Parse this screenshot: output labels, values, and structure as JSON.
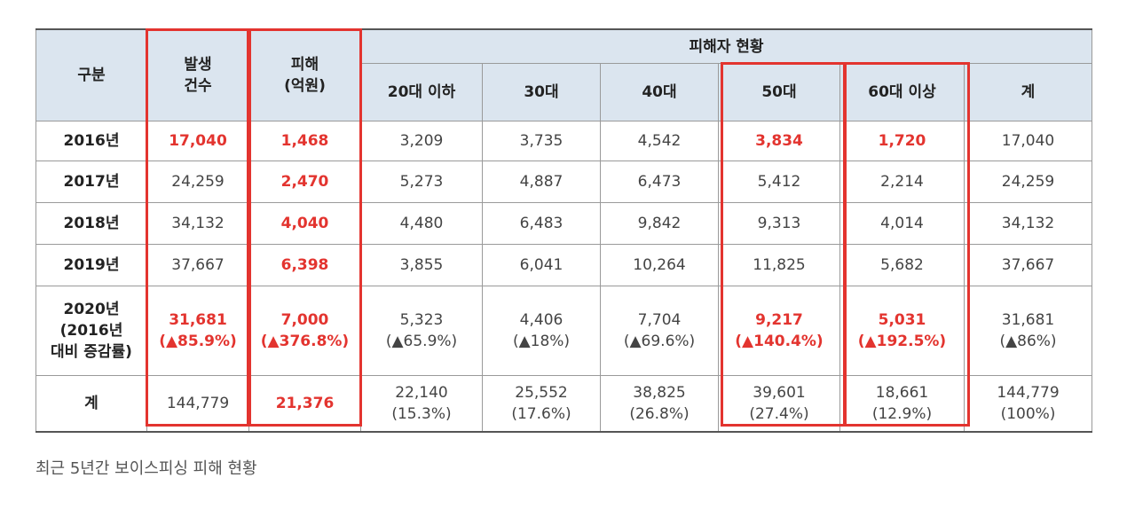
{
  "table": {
    "headers": {
      "category": "구분",
      "occurrences": [
        "발생",
        "건수"
      ],
      "damage": [
        "피해",
        "(억원)"
      ],
      "victims_group": "피해자 현황",
      "age_groups": [
        "20대 이하",
        "30대",
        "40대",
        "50대",
        "60대 이상",
        "계"
      ]
    },
    "rows": [
      {
        "label": [
          "2016년"
        ],
        "occurrences": [
          "17,040"
        ],
        "damage": [
          "1,468"
        ],
        "ages": [
          [
            "3,209"
          ],
          [
            "3,735"
          ],
          [
            "4,542"
          ],
          [
            "3,834"
          ],
          [
            "1,720"
          ],
          [
            "17,040"
          ]
        ]
      },
      {
        "label": [
          "2017년"
        ],
        "occurrences": [
          "24,259"
        ],
        "damage": [
          "2,470"
        ],
        "ages": [
          [
            "5,273"
          ],
          [
            "4,887"
          ],
          [
            "6,473"
          ],
          [
            "5,412"
          ],
          [
            "2,214"
          ],
          [
            "24,259"
          ]
        ]
      },
      {
        "label": [
          "2018년"
        ],
        "occurrences": [
          "34,132"
        ],
        "damage": [
          "4,040"
        ],
        "ages": [
          [
            "4,480"
          ],
          [
            "6,483"
          ],
          [
            "9,842"
          ],
          [
            "9,313"
          ],
          [
            "4,014"
          ],
          [
            "34,132"
          ]
        ]
      },
      {
        "label": [
          "2019년"
        ],
        "occurrences": [
          "37,667"
        ],
        "damage": [
          "6,398"
        ],
        "ages": [
          [
            "3,855"
          ],
          [
            "6,041"
          ],
          [
            "10,264"
          ],
          [
            "11,825"
          ],
          [
            "5,682"
          ],
          [
            "37,667"
          ]
        ]
      },
      {
        "label": [
          "2020년",
          "(2016년",
          "대비 증감률)"
        ],
        "occurrences": [
          "31,681",
          "(▲85.9%)"
        ],
        "damage": [
          "7,000",
          "(▲376.8%)"
        ],
        "ages": [
          [
            "5,323",
            "(▲65.9%)"
          ],
          [
            "4,406",
            "(▲18%)"
          ],
          [
            "7,704",
            "(▲69.6%)"
          ],
          [
            "9,217",
            "(▲140.4%)"
          ],
          [
            "5,031",
            "(▲192.5%)"
          ],
          [
            "31,681",
            "(▲86%)"
          ]
        ]
      },
      {
        "label": [
          "계"
        ],
        "occurrences": [
          "144,779"
        ],
        "damage": [
          "21,376"
        ],
        "ages": [
          [
            "22,140",
            "(15.3%)"
          ],
          [
            "25,552",
            "(17.6%)"
          ],
          [
            "38,825",
            "(26.8%)"
          ],
          [
            "39,601",
            "(27.4%)"
          ],
          [
            "18,661",
            "(12.9%)"
          ],
          [
            "144,779",
            "(100%)"
          ]
        ]
      }
    ],
    "highlight_color": "#e3342f",
    "header_bg": "#dbe5ef"
  },
  "caption": "최근 5년간 보이스피싱 피해 현황"
}
